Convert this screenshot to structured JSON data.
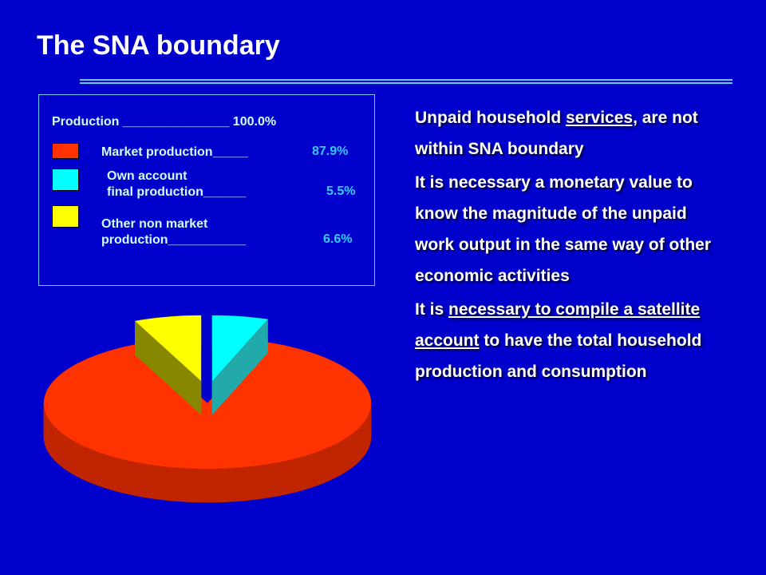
{
  "title": "The SNA boundary",
  "chart_data": {
    "type": "pie3d",
    "legend_header": "Production _______________ 100.0%",
    "series": [
      {
        "name": "Market production_____",
        "color": "#ff3300",
        "side_color": "#c02400"
      },
      {
        "name": "Own account\nfinal production______",
        "color": "#00ffff",
        "side_color": "#22aaaa"
      },
      {
        "name": "Other non market\n production___________",
        "color": "#ffff00",
        "side_color": "#888800"
      }
    ],
    "values": [
      87.9,
      5.5,
      6.6
    ],
    "value_labels": [
      "87.9%",
      "5.5%",
      "6.6%"
    ]
  },
  "notes": [
    [
      {
        "text": "Unpaid household ",
        "underline": false
      },
      {
        "text": "services,",
        "underline": true
      },
      {
        "text": " are not within SNA boundary",
        "underline": false
      }
    ],
    [
      {
        "text": "It is necessary a monetary value to know the magnitude of the unpaid work output in the same way of other economic activities",
        "underline": false
      }
    ],
    [
      {
        "text": "It is ",
        "underline": false
      },
      {
        "text": "necessary to compile a satellite account",
        "underline": true
      },
      {
        "text": " to have the total household production and consumption",
        "underline": false
      }
    ]
  ]
}
